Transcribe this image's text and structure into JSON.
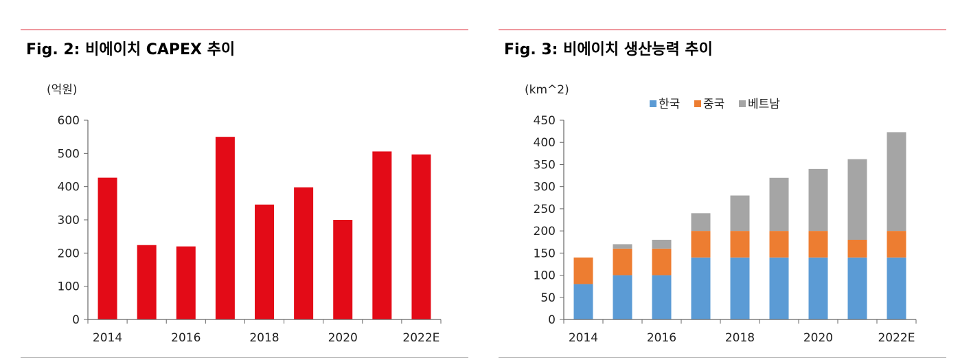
{
  "colors": {
    "rule_red": "#d9101f",
    "bar_red": "#e30b17",
    "korea": "#5b9bd5",
    "china": "#ed7d31",
    "vietnam": "#a5a5a5"
  },
  "chart_data": [
    {
      "type": "bar",
      "title": "Fig. 2: 비에이치 CAPEX 추이",
      "unit_label": "(억원)",
      "categories": [
        "2014",
        "2015",
        "2016",
        "2017",
        "2018",
        "2019",
        "2020",
        "2021",
        "2022E"
      ],
      "x_tick_labels": [
        "2014",
        "",
        "2016",
        "",
        "2018",
        "",
        "2020",
        "",
        "2022E"
      ],
      "values": [
        427,
        224,
        220,
        550,
        346,
        398,
        300,
        506,
        497
      ],
      "ylim": [
        0,
        600
      ],
      "yticks": [
        "0",
        "100",
        "200",
        "300",
        "400",
        "500",
        "600"
      ],
      "xlabel": "",
      "ylabel": "억원"
    },
    {
      "type": "bar",
      "stacked": true,
      "title": "Fig. 3: 비에이치 생산능력 추이",
      "unit_label": "(km^2)",
      "categories": [
        "2014",
        "2015",
        "2016",
        "2017",
        "2018",
        "2019",
        "2020",
        "2021",
        "2022E"
      ],
      "x_tick_labels": [
        "2014",
        "",
        "2016",
        "",
        "2018",
        "",
        "2020",
        "",
        "2022E"
      ],
      "series": [
        {
          "name": "한국",
          "values": [
            80,
            100,
            100,
            140,
            140,
            140,
            140,
            140,
            140
          ]
        },
        {
          "name": "중국",
          "values": [
            60,
            60,
            60,
            60,
            60,
            60,
            60,
            40,
            60
          ]
        },
        {
          "name": "베트남",
          "values": [
            0,
            10,
            20,
            40,
            80,
            120,
            140,
            182,
            223
          ]
        }
      ],
      "legend": [
        "한국",
        "중국",
        "베트남"
      ],
      "legend_position": "top-center",
      "ylim": [
        0,
        450
      ],
      "yticks": [
        "0",
        "50",
        "100",
        "150",
        "200",
        "250",
        "300",
        "350",
        "400",
        "450"
      ],
      "xlabel": "",
      "ylabel": "km^2"
    }
  ]
}
